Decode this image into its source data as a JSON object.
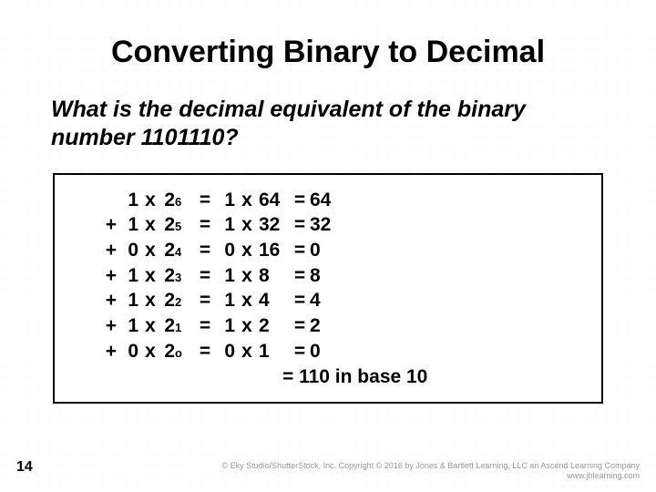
{
  "slide": {
    "title": "Converting Binary to Decimal",
    "question": "What is the decimal equivalent of the binary number 1101110?",
    "page_number": "14",
    "final_line": "= 110 in base 10",
    "copyright_line1": "© Eky Studio/ShutterStock, Inc. Copyright © 2016 by Jones & Bartlett Learning, LLC an Ascend Learning Company",
    "copyright_line2": "www.jblearning.com"
  },
  "calc": {
    "rows": [
      {
        "plus": "",
        "bit": "1",
        "exp": "6",
        "bit2": "1",
        "pow": "64",
        "result": "64"
      },
      {
        "plus": "+",
        "bit": "1",
        "exp": "5",
        "bit2": "1",
        "pow": "32",
        "result": "32"
      },
      {
        "plus": "+",
        "bit": "0",
        "exp": "4",
        "bit2": "0",
        "pow": "16",
        "result": "0"
      },
      {
        "plus": "+",
        "bit": "1",
        "exp": "3",
        "bit2": "1",
        "pow": "8",
        "result": "8"
      },
      {
        "plus": "+",
        "bit": "1",
        "exp": "2",
        "bit2": "1",
        "pow": "4",
        "result": "4"
      },
      {
        "plus": "+",
        "bit": "1",
        "exp": "1",
        "bit2": "1",
        "pow": "2",
        "result": "2"
      },
      {
        "plus": "+",
        "bit": "0",
        "exp": "o",
        "bit2": "0",
        "pow": "1",
        "result": "0"
      }
    ]
  },
  "style": {
    "title_fontsize": 34,
    "question_fontsize": 25,
    "calc_fontsize": 21,
    "exp_fontsize": 13,
    "text_color": "#000000",
    "border_color": "#000000",
    "background": "#ffffff",
    "pattern_color": "#e8e8e8",
    "copyright_color": "#9a9a9a"
  }
}
